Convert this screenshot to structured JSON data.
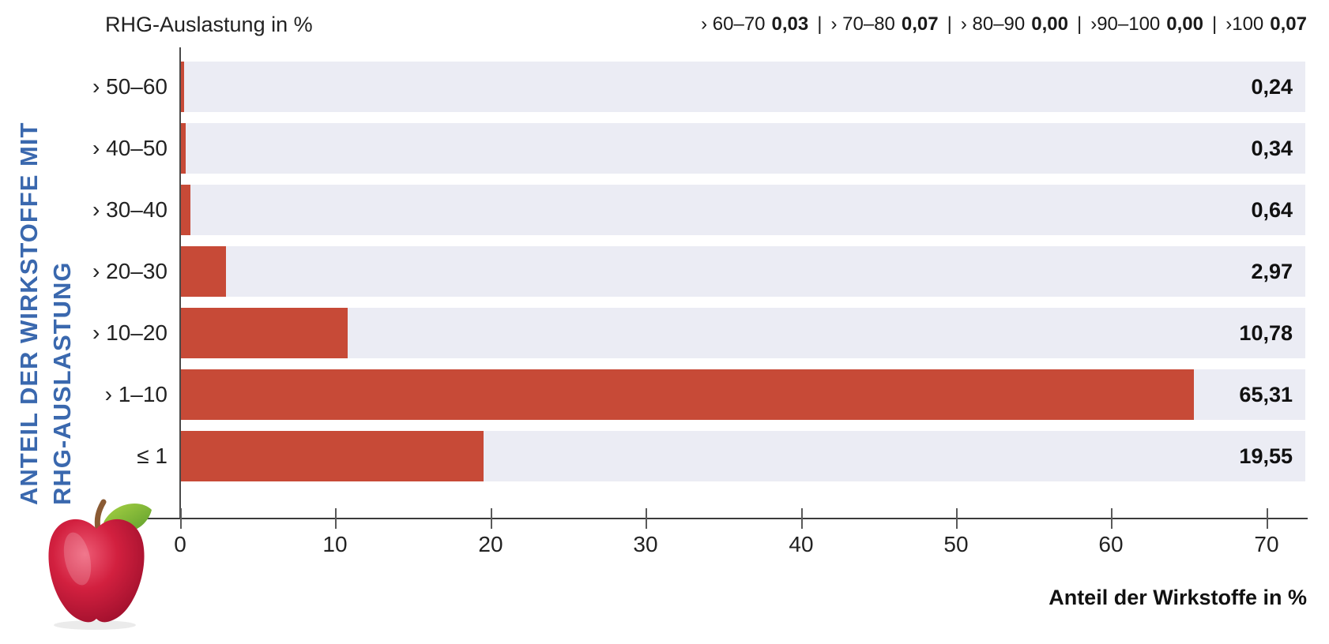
{
  "colors": {
    "bar": "#c74a37",
    "track": "#ebecf4",
    "accent_blue": "#3a68ae",
    "axis": "#4a4a4a",
    "text": "#1a1a1a"
  },
  "side_label": {
    "line1": "ANTEIL DER WIRKSTOFFE MIT",
    "line2": "RHG-AUSLASTUNG"
  },
  "header": {
    "title": "RHG-Auslastung in %"
  },
  "legend": {
    "separator": "|",
    "items": [
      {
        "range": "› 60–70",
        "value": "0,03"
      },
      {
        "range": "› 70–80",
        "value": "0,07"
      },
      {
        "range": "› 80–90",
        "value": "0,00"
      },
      {
        "range": "›90–100",
        "value": "0,00"
      },
      {
        "range": "›100",
        "value": "0,07"
      }
    ]
  },
  "footer": {
    "xlabel": "Anteil der Wirkstoffe in %"
  },
  "chart_data": {
    "type": "bar",
    "orientation": "horizontal",
    "title": "RHG-Auslastung in %",
    "xlabel": "Anteil der Wirkstoffe in %",
    "ylabel": "Anteil der Wirkstoffe mit RHG-Auslastung",
    "categories": [
      "› 50–60",
      "› 40–50",
      "› 30–40",
      "› 20–30",
      "› 10–20",
      "› 1–10",
      "≤ 1"
    ],
    "values": [
      0.24,
      0.34,
      0.64,
      2.97,
      10.78,
      65.31,
      19.55
    ],
    "value_labels": [
      "0,24",
      "0,34",
      "0,64",
      "2,97",
      "10,78",
      "65,31",
      "19,55"
    ],
    "extra_ranges": [
      {
        "range": "› 60–70",
        "value": 0.03
      },
      {
        "range": "› 70–80",
        "value": 0.07
      },
      {
        "range": "› 80–90",
        "value": 0.0
      },
      {
        "range": "›90–100",
        "value": 0.0
      },
      {
        "range": "›100",
        "value": 0.07
      }
    ],
    "x_ticks": [
      0,
      10,
      20,
      30,
      40,
      50,
      60,
      70
    ],
    "xlim": [
      0,
      72.5
    ],
    "grid": false,
    "legend_position": "top-right",
    "bar_color": "#c74a37",
    "track_color": "#ebecf4"
  }
}
